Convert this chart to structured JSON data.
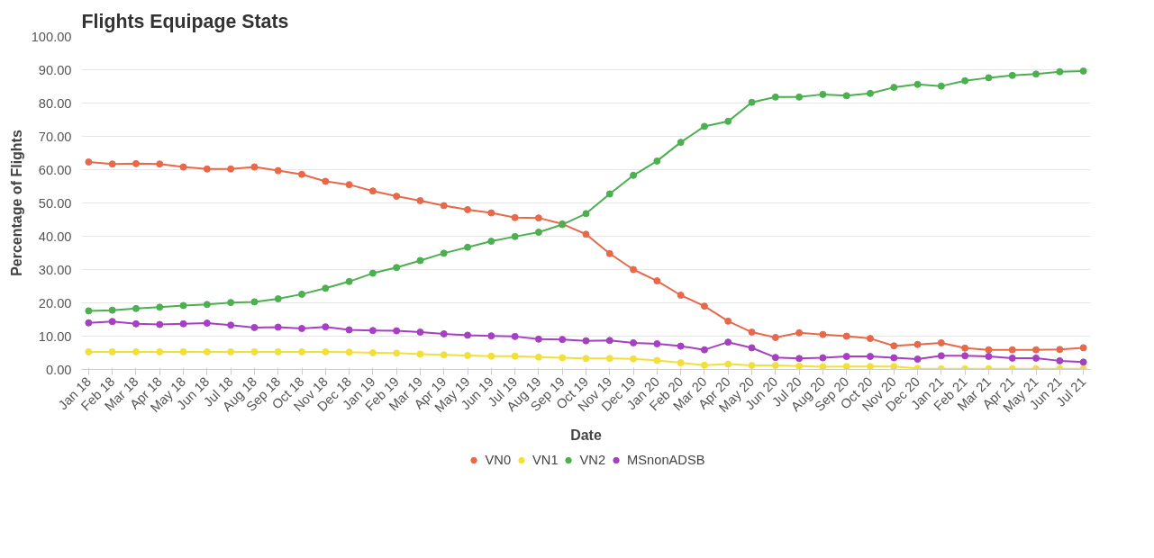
{
  "chart_data": {
    "type": "line",
    "title": "Flights Equipage Stats",
    "xlabel": "Date",
    "ylabel": "Percentage of Flights",
    "categories": [
      "Jan 18",
      "Feb 18",
      "Mar 18",
      "Apr 18",
      "May 18",
      "Jun 18",
      "Jul 18",
      "Aug 18",
      "Sep 18",
      "Oct 18",
      "Nov 18",
      "Dec 18",
      "Jan 19",
      "Feb 19",
      "Mar 19",
      "Apr 19",
      "May 19",
      "Jun 19",
      "Jul 19",
      "Aug 19",
      "Sep 19",
      "Oct 19",
      "Nov 19",
      "Dec 19",
      "Jan 20",
      "Feb 20",
      "Mar 20",
      "Apr 20",
      "May 20",
      "Jun 20",
      "Jul 20",
      "Aug 20",
      "Sep 20",
      "Oct 20",
      "Nov 20",
      "Dec 20",
      "Jan 21",
      "Feb 21",
      "Mar 21",
      "Apr 21",
      "May 21",
      "Jun 21",
      "Jul 21"
    ],
    "series": [
      {
        "name": "VN0",
        "color": "#e8684a",
        "values": [
          62.3,
          61.7,
          61.8,
          61.7,
          60.8,
          60.2,
          60.2,
          60.8,
          59.7,
          58.6,
          56.5,
          55.5,
          53.6,
          52,
          50.7,
          49.2,
          48,
          47,
          45.6,
          45.5,
          43.7,
          40.6,
          34.8,
          30,
          26.6,
          22.3,
          19,
          14.5,
          11.2,
          9.6,
          11,
          10.5,
          10,
          9.3,
          7.1,
          7.5,
          8,
          6.4,
          5.9,
          5.9,
          5.9,
          6,
          6.5
        ]
      },
      {
        "name": "VN1",
        "color": "#f2e03a",
        "values": [
          5.3,
          5.3,
          5.3,
          5.3,
          5.3,
          5.3,
          5.3,
          5.3,
          5.3,
          5.3,
          5.3,
          5.2,
          5,
          4.9,
          4.6,
          4.4,
          4.2,
          4,
          4,
          3.7,
          3.5,
          3.3,
          3.3,
          3.2,
          2.7,
          2,
          1.3,
          1.6,
          1.2,
          1.2,
          1,
          0.8,
          0.9,
          0.9,
          0.9,
          0.3,
          0.2,
          0.2,
          0.2,
          0.2,
          0.2,
          0.2,
          0.2
        ]
      },
      {
        "name": "VN2",
        "color": "#4caf50",
        "values": [
          17.6,
          17.8,
          18.3,
          18.7,
          19.2,
          19.5,
          20.1,
          20.3,
          21.2,
          22.6,
          24.4,
          26.4,
          28.9,
          30.6,
          32.7,
          34.9,
          36.7,
          38.5,
          39.9,
          41.2,
          43.5,
          46.8,
          52.7,
          58.3,
          62.6,
          68.2,
          73,
          74.5,
          80.2,
          81.8,
          81.8,
          82.6,
          82.2,
          82.9,
          84.7,
          85.6,
          85.1,
          86.7,
          87.6,
          88.3,
          88.7,
          89.4,
          89.6
        ]
      },
      {
        "name": "MSnonADSB",
        "color": "#a63fc2",
        "values": [
          14,
          14.4,
          13.7,
          13.5,
          13.7,
          13.9,
          13.3,
          12.6,
          12.7,
          12.3,
          12.8,
          11.9,
          11.7,
          11.6,
          11.2,
          10.7,
          10.3,
          10.1,
          9.9,
          9.1,
          9,
          8.6,
          8.7,
          8,
          7.7,
          7,
          5.9,
          8.2,
          6.5,
          3.6,
          3.3,
          3.5,
          3.9,
          3.9,
          3.5,
          3.1,
          4.1,
          4.1,
          3.9,
          3.4,
          3.4,
          2.6,
          2.2
        ]
      }
    ],
    "ylim": [
      0,
      100
    ],
    "yticks": [
      {
        "value": 0,
        "label": "0.00"
      },
      {
        "value": 10,
        "label": "10.00"
      },
      {
        "value": 20,
        "label": "20.00"
      },
      {
        "value": 30,
        "label": "30.00"
      },
      {
        "value": 40,
        "label": "40.00"
      },
      {
        "value": 50,
        "label": "50.00"
      },
      {
        "value": 60,
        "label": "60.00"
      },
      {
        "value": 70,
        "label": "70.00"
      },
      {
        "value": 80,
        "label": "80.00"
      },
      {
        "value": 90,
        "label": "90.00"
      },
      {
        "value": 100,
        "label": "100.00"
      }
    ],
    "grid": "y",
    "legend": "bottom",
    "marker": "circle",
    "line_style": "solid"
  }
}
